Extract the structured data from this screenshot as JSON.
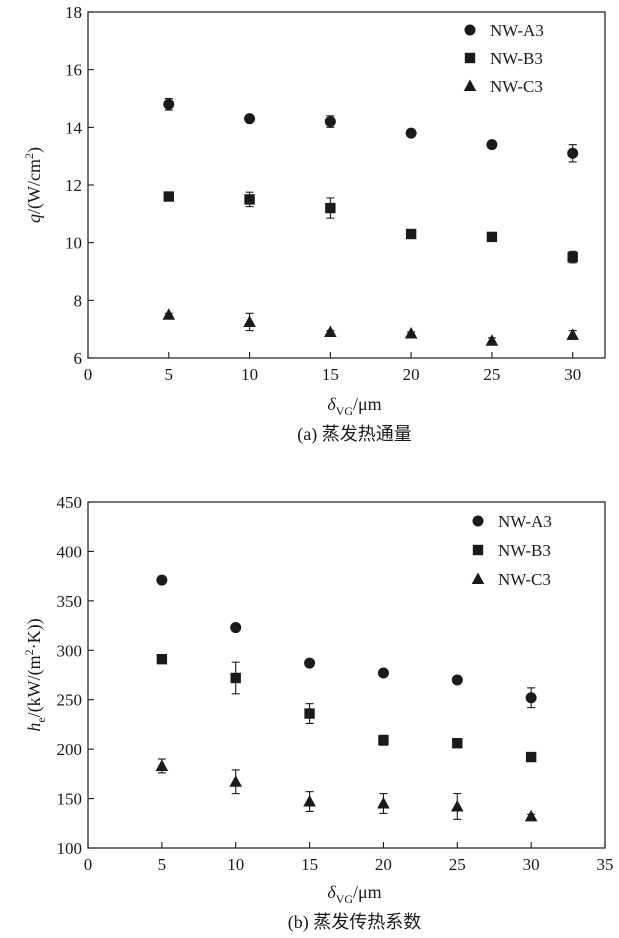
{
  "chart_data": [
    {
      "type": "scatter",
      "ylabel": "q/(W/cm2)",
      "xlabel": "δVG/μm",
      "caption": "(a) 蒸发热通量",
      "xlim": [
        0,
        32
      ],
      "ylim": [
        6,
        18
      ],
      "xticks": [
        0,
        5,
        10,
        15,
        20,
        25,
        30
      ],
      "yticks": [
        6,
        8,
        10,
        12,
        14,
        16,
        18
      ],
      "legend_position": "top-right",
      "grid": false,
      "x": [
        5,
        10,
        15,
        20,
        25,
        30
      ],
      "series": [
        {
          "name": "NW-A3",
          "marker": "circle",
          "values": [
            14.8,
            14.3,
            14.2,
            13.8,
            13.4,
            13.1
          ],
          "errors": [
            0.2,
            0.05,
            0.2,
            0.05,
            0.05,
            0.3
          ]
        },
        {
          "name": "NW-B3",
          "marker": "square",
          "values": [
            11.6,
            11.5,
            11.2,
            10.3,
            10.2,
            9.5
          ],
          "errors": [
            0.05,
            0.25,
            0.35,
            0.15,
            0.05,
            0.2
          ]
        },
        {
          "name": "NW-C3",
          "marker": "triangle",
          "values": [
            7.5,
            7.25,
            6.9,
            6.85,
            6.6,
            6.8
          ],
          "errors": [
            0.05,
            0.3,
            0.05,
            0.05,
            0.1,
            0.15
          ]
        }
      ]
    },
    {
      "type": "scatter",
      "ylabel": "he/(kW/(m2·K))",
      "xlabel": "δVG/μm",
      "caption": "(b) 蒸发传热系数",
      "xlim": [
        0,
        35
      ],
      "ylim": [
        100,
        450
      ],
      "xticks": [
        0,
        5,
        10,
        15,
        20,
        25,
        30,
        35
      ],
      "yticks": [
        100,
        150,
        200,
        250,
        300,
        350,
        400,
        450
      ],
      "legend_position": "top-right",
      "grid": false,
      "x": [
        5,
        10,
        15,
        20,
        25,
        30
      ],
      "series": [
        {
          "name": "NW-A3",
          "marker": "circle",
          "values": [
            371,
            323,
            287,
            277,
            270,
            252
          ],
          "errors": [
            2,
            3,
            3,
            3,
            3,
            10
          ]
        },
        {
          "name": "NW-B3",
          "marker": "square",
          "values": [
            291,
            272,
            236,
            209,
            206,
            192
          ],
          "errors": [
            2,
            16,
            10,
            5,
            2,
            2
          ]
        },
        {
          "name": "NW-C3",
          "marker": "triangle",
          "values": [
            183,
            167,
            147,
            145,
            142,
            132
          ],
          "errors": [
            7,
            12,
            10,
            10,
            13,
            2
          ]
        }
      ]
    }
  ]
}
